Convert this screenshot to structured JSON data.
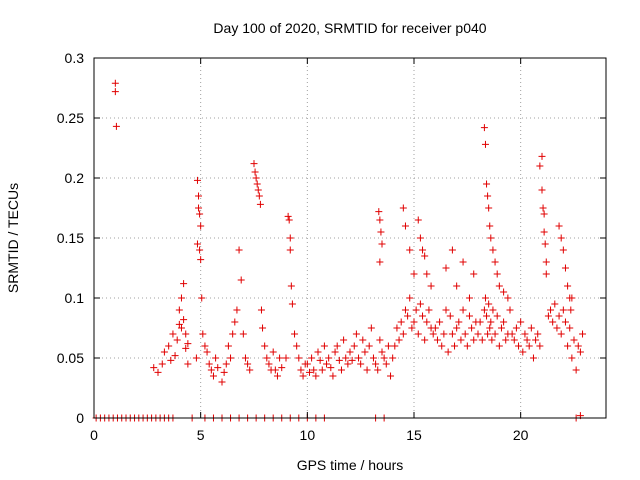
{
  "chart_data": {
    "type": "scatter",
    "title": "Day 100 of 2020, SRMTID for receiver p040",
    "xlabel": "GPS time / hours",
    "ylabel": "SRMTID / TECUs",
    "xlim": [
      0,
      24
    ],
    "ylim": [
      0,
      0.3
    ],
    "xticks": [
      0,
      5,
      10,
      15,
      20
    ],
    "xtick_labels": [
      "0",
      "5",
      "10",
      "15",
      "20"
    ],
    "yticks": [
      0,
      0.05,
      0.1,
      0.15,
      0.2,
      0.25,
      0.3
    ],
    "ytick_labels": [
      "0",
      "0.05",
      "0.1",
      "0.15",
      "0.2",
      "0.25",
      "0.3"
    ],
    "grid": true,
    "marker": "+",
    "series": [
      {
        "name": "SRMTID",
        "color": "#e00000",
        "x": [
          0.1,
          0.3,
          0.5,
          0.7,
          0.9,
          1.0,
          1.0,
          1.05,
          1.1,
          1.3,
          1.5,
          1.7,
          1.9,
          2.1,
          2.3,
          2.5,
          2.7,
          2.9,
          3.1,
          3.3,
          3.5,
          3.7,
          4.6,
          5.2,
          5.6,
          6.0,
          6.4,
          6.8,
          7.2,
          7.6,
          8.0,
          8.4,
          8.8,
          9.2,
          9.6,
          10.0,
          10.4,
          10.8,
          13.2,
          13.6,
          22.6,
          22.8,
          2.8,
          3.0,
          3.2,
          3.3,
          3.5,
          3.6,
          3.7,
          3.8,
          3.9,
          4.0,
          4.0,
          4.1,
          4.1,
          4.2,
          4.2,
          4.3,
          4.3,
          4.4,
          4.4,
          4.8,
          4.85,
          4.9,
          4.95,
          5.0,
          4.9,
          4.85,
          4.95,
          5.0,
          5.05,
          5.1,
          5.2,
          5.3,
          5.4,
          5.5,
          5.6,
          5.7,
          5.8,
          6.0,
          6.1,
          6.2,
          6.3,
          6.4,
          6.5,
          6.6,
          6.7,
          6.8,
          6.9,
          7.0,
          7.1,
          7.2,
          7.3,
          7.5,
          7.55,
          7.6,
          7.65,
          7.7,
          7.75,
          7.8,
          7.85,
          7.9,
          8.0,
          8.1,
          8.2,
          8.3,
          8.4,
          8.5,
          8.6,
          8.7,
          8.8,
          9.0,
          9.1,
          9.15,
          9.2,
          9.2,
          9.25,
          9.3,
          9.4,
          9.5,
          9.6,
          9.7,
          9.8,
          9.9,
          10.0,
          10.1,
          10.2,
          10.3,
          10.4,
          10.5,
          10.6,
          10.7,
          10.8,
          10.9,
          11.0,
          11.1,
          11.2,
          11.3,
          11.4,
          11.5,
          11.6,
          11.7,
          11.8,
          11.9,
          12.0,
          12.1,
          12.2,
          12.3,
          12.4,
          12.5,
          12.6,
          12.7,
          12.8,
          12.9,
          13.0,
          13.1,
          13.2,
          13.3,
          13.4,
          13.5,
          13.6,
          13.7,
          13.8,
          13.9,
          13.35,
          13.4,
          13.45,
          13.5,
          13.4,
          14.0,
          14.1,
          14.2,
          14.3,
          14.4,
          14.5,
          14.6,
          14.7,
          14.8,
          14.9,
          15.0,
          15.1,
          15.2,
          15.3,
          15.4,
          15.5,
          15.6,
          15.7,
          15.8,
          15.9,
          14.5,
          14.6,
          14.8,
          15.0,
          15.2,
          15.3,
          15.4,
          15.5,
          15.6,
          15.8,
          16.0,
          16.1,
          16.2,
          16.3,
          16.4,
          16.5,
          16.6,
          16.7,
          16.8,
          16.9,
          17.0,
          17.1,
          17.2,
          17.3,
          17.4,
          17.5,
          17.6,
          17.7,
          17.8,
          17.9,
          16.5,
          16.8,
          17.0,
          17.3,
          17.6,
          17.8,
          18.0,
          18.1,
          18.2,
          18.3,
          18.35,
          18.4,
          18.45,
          18.5,
          18.55,
          18.6,
          18.65,
          18.7,
          18.8,
          18.9,
          19.0,
          19.1,
          19.2,
          19.3,
          19.4,
          19.5,
          18.3,
          18.35,
          18.4,
          18.45,
          18.5,
          18.55,
          18.6,
          18.7,
          18.8,
          18.9,
          19.0,
          19.2,
          19.4,
          19.6,
          19.7,
          19.8,
          19.9,
          20.0,
          20.1,
          20.2,
          20.3,
          20.4,
          20.5,
          20.6,
          20.7,
          20.8,
          20.9,
          20.9,
          21.0,
          21.0,
          21.05,
          21.1,
          21.1,
          21.15,
          21.2,
          21.2,
          21.3,
          21.4,
          21.5,
          21.6,
          21.7,
          21.8,
          21.9,
          22.0,
          22.1,
          22.2,
          22.3,
          22.4,
          22.5,
          22.6,
          22.7,
          22.8,
          22.9,
          21.8,
          21.9,
          22.0,
          22.1,
          22.2,
          22.3,
          22.35,
          22.4
        ],
        "y": [
          0,
          0,
          0,
          0,
          0,
          0.279,
          0.272,
          0.243,
          0,
          0,
          0,
          0,
          0,
          0,
          0,
          0,
          0,
          0,
          0,
          0,
          0,
          0,
          0,
          0,
          0,
          0,
          0,
          0,
          0,
          0,
          0,
          0,
          0,
          0,
          0,
          0,
          0,
          0,
          0,
          0,
          0,
          0.002,
          0.042,
          0.038,
          0.045,
          0.055,
          0.06,
          0.048,
          0.07,
          0.052,
          0.065,
          0.078,
          0.09,
          0.075,
          0.1,
          0.082,
          0.112,
          0.058,
          0.07,
          0.045,
          0.062,
          0.05,
          0.198,
          0.175,
          0.17,
          0.16,
          0.185,
          0.145,
          0.14,
          0.132,
          0.1,
          0.07,
          0.06,
          0.055,
          0.045,
          0.04,
          0.035,
          0.05,
          0.042,
          0.03,
          0.038,
          0.045,
          0.06,
          0.05,
          0.07,
          0.08,
          0.09,
          0.14,
          0.115,
          0.07,
          0.05,
          0.045,
          0.04,
          0.212,
          0.205,
          0.2,
          0.195,
          0.19,
          0.185,
          0.178,
          0.09,
          0.075,
          0.06,
          0.05,
          0.045,
          0.04,
          0.055,
          0.04,
          0.035,
          0.05,
          0.042,
          0.05,
          0.168,
          0.165,
          0.15,
          0.14,
          0.11,
          0.095,
          0.07,
          0.06,
          0.05,
          0.04,
          0.035,
          0.045,
          0.045,
          0.038,
          0.05,
          0.04,
          0.035,
          0.055,
          0.048,
          0.04,
          0.06,
          0.045,
          0.05,
          0.042,
          0.035,
          0.055,
          0.06,
          0.048,
          0.04,
          0.065,
          0.05,
          0.045,
          0.055,
          0.048,
          0.06,
          0.07,
          0.05,
          0.045,
          0.065,
          0.055,
          0.04,
          0.06,
          0.075,
          0.05,
          0.045,
          0.04,
          0.065,
          0.055,
          0.05,
          0.045,
          0.06,
          0.035,
          0.172,
          0.165,
          0.155,
          0.145,
          0.13,
          0.05,
          0.06,
          0.075,
          0.065,
          0.08,
          0.07,
          0.09,
          0.085,
          0.1,
          0.075,
          0.08,
          0.09,
          0.07,
          0.095,
          0.085,
          0.065,
          0.08,
          0.09,
          0.075,
          0.07,
          0.175,
          0.16,
          0.14,
          0.12,
          0.165,
          0.15,
          0.14,
          0.135,
          0.12,
          0.11,
          0.075,
          0.065,
          0.08,
          0.06,
          0.07,
          0.09,
          0.055,
          0.085,
          0.07,
          0.06,
          0.075,
          0.08,
          0.065,
          0.09,
          0.07,
          0.06,
          0.085,
          0.075,
          0.065,
          0.08,
          0.125,
          0.14,
          0.11,
          0.13,
          0.1,
          0.12,
          0.07,
          0.08,
          0.065,
          0.09,
          0.1,
          0.085,
          0.07,
          0.095,
          0.075,
          0.08,
          0.065,
          0.09,
          0.07,
          0.085,
          0.06,
          0.075,
          0.08,
          0.065,
          0.07,
          0.09,
          0.242,
          0.228,
          0.195,
          0.185,
          0.175,
          0.16,
          0.15,
          0.14,
          0.13,
          0.12,
          0.11,
          0.105,
          0.1,
          0.07,
          0.065,
          0.075,
          0.06,
          0.08,
          0.055,
          0.07,
          0.065,
          0.06,
          0.075,
          0.05,
          0.065,
          0.07,
          0.06,
          0.21,
          0.218,
          0.19,
          0.175,
          0.17,
          0.155,
          0.145,
          0.13,
          0.12,
          0.085,
          0.09,
          0.08,
          0.095,
          0.075,
          0.085,
          0.07,
          0.09,
          0.08,
          0.06,
          0.075,
          0.05,
          0.065,
          0.04,
          0.06,
          0.055,
          0.07,
          0.16,
          0.15,
          0.14,
          0.125,
          0.11,
          0.1,
          0.09,
          0.1
        ]
      }
    ]
  }
}
